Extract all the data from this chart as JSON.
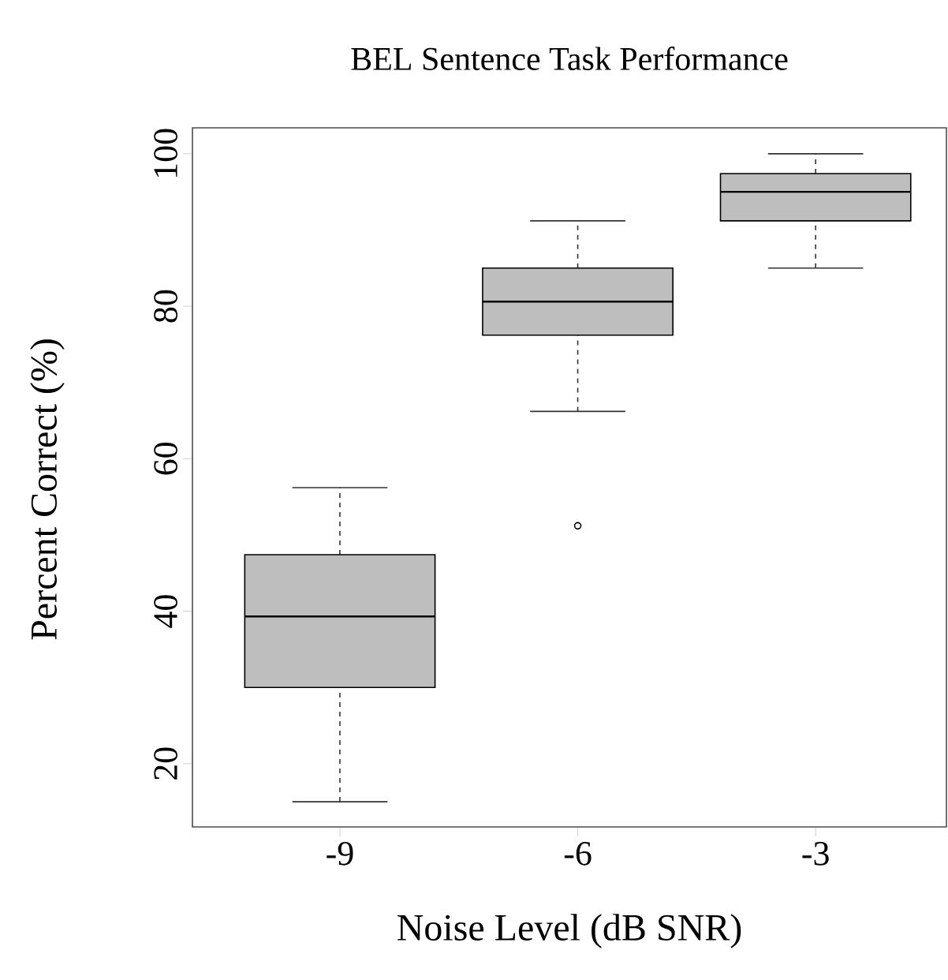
{
  "chart_data": {
    "type": "box",
    "title": "BEL Sentence  Task Performance",
    "xlabel": "Noise Level  (dB SNR)",
    "ylabel": "Percent Correct (%)",
    "categories": [
      "-9",
      "-6",
      "-3"
    ],
    "color": "#bebebe",
    "boxes": [
      {
        "low": 15.0,
        "q1": 30.0,
        "median": 39.3,
        "q3": 47.4,
        "high": 56.2
      },
      {
        "low": 66.2,
        "q1": 76.2,
        "median": 80.6,
        "q3": 85.0,
        "high": 91.2,
        "outliers": [
          51.2
        ]
      },
      {
        "low": 85.0,
        "q1": 91.2,
        "median": 95.0,
        "q3": 97.4,
        "high": 100.0
      }
    ],
    "ylim": [
      11.7,
      103.4
    ],
    "yticks": [
      20,
      40,
      60,
      80,
      100
    ],
    "grid": false,
    "line_style": "dashed",
    "marker": "circle"
  }
}
